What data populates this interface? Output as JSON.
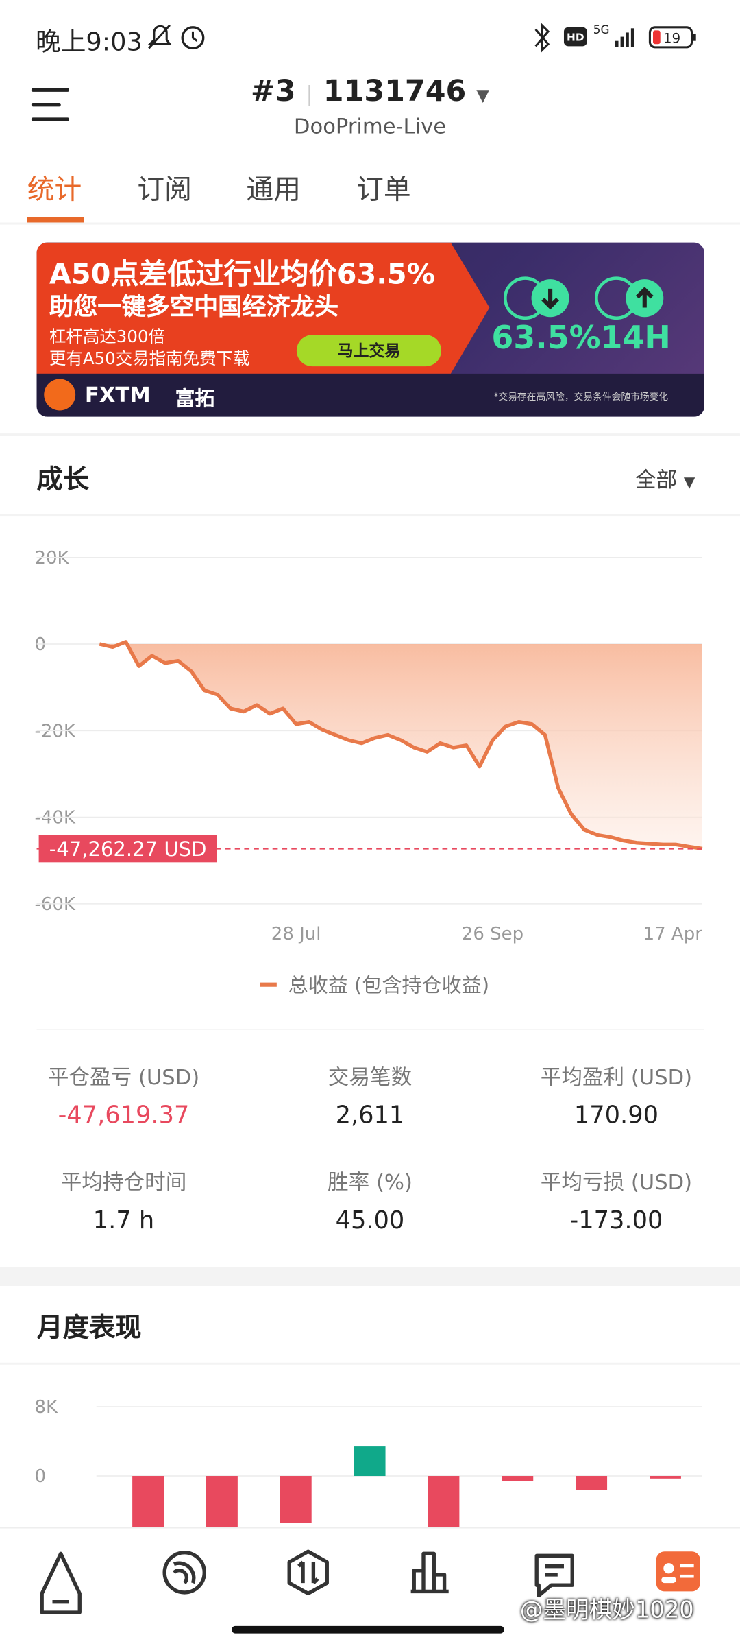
{
  "status_bar": {
    "time": "晚上9:03",
    "hd": "HD",
    "network": "5G",
    "battery": "19"
  },
  "header": {
    "account": "#3",
    "number": "1131746",
    "server": "DooPrime-Live"
  },
  "tabs": [
    "统计",
    "订阅",
    "通用",
    "订单"
  ],
  "banner": {
    "headline": "A50点差低过行业均价63.5%",
    "subhead": "助您一键多空中国经济龙头",
    "line1": "杠杆高达300倍",
    "line2": "更有A50交易指南免费下载",
    "button": "马上交易",
    "stat1": "63.5%",
    "stat2": "14H",
    "brand": "FXTM",
    "brand_cn": "富拓",
    "disclaimer": "*交易存在高风险，交易条件会随市场变化"
  },
  "growth": {
    "title": "成长",
    "filter": "全部"
  },
  "stats": [
    {
      "label": "平仓盈亏 (USD)",
      "value": "-47,619.37"
    },
    {
      "label": "交易笔数",
      "value": "2,611"
    },
    {
      "label": "平均盈利 (USD)",
      "value": "170.90"
    },
    {
      "label": "平均持仓时间",
      "value": "1.7 h"
    },
    {
      "label": "胜率 (%)",
      "value": "45.00"
    },
    {
      "label": "平均亏损 (USD)",
      "value": "-173.00"
    }
  ],
  "monthly": {
    "title": "月度表现"
  },
  "watermark": "@墨明棋妙1020",
  "chart_data": [
    {
      "type": "area",
      "categories": [
        null,
        null,
        null,
        null,
        null,
        null,
        null,
        null,
        null,
        null,
        null,
        null,
        null,
        null,
        null,
        "28 Jul",
        null,
        null,
        null,
        null,
        null,
        null,
        null,
        null,
        null,
        null,
        null,
        null,
        null,
        null,
        "26 Sep",
        null,
        null,
        null,
        null,
        null,
        null,
        null,
        null,
        null,
        null,
        null,
        null,
        null,
        null,
        null,
        "17 Apr"
      ],
      "series": [
        {
          "name": "总收益 (包含持仓收益)",
          "color": "#e8794a",
          "values": [
            0,
            -700,
            500,
            -5100,
            -2700,
            -4400,
            -3900,
            -6300,
            -10700,
            -11700,
            -14900,
            -15600,
            -14100,
            -16100,
            -14900,
            -18500,
            -18000,
            -19800,
            -21000,
            -22200,
            -22900,
            -21700,
            -21000,
            -22200,
            -23900,
            -24900,
            -22900,
            -23900,
            -23400,
            -28300,
            -22200,
            -19000,
            -18000,
            -18500,
            -21000,
            -33200,
            -39300,
            -42900,
            -44100,
            -44600,
            -45400,
            -45900,
            -46100,
            -46300,
            -46300,
            -46800,
            -47262.27
          ]
        }
      ],
      "ylim": [
        -60000,
        20000
      ],
      "yticks": [
        {
          "value": 20000,
          "label": "20K"
        },
        0,
        {
          "value": -20000,
          "label": "-20K"
        },
        {
          "value": -40000,
          "label": "-40K"
        },
        {
          "value": -60000,
          "label": "-60K"
        }
      ],
      "grid": true,
      "annotation": {
        "value": -47262.27,
        "label": "-47,262.27 USD",
        "color": "#e8495e"
      }
    },
    {
      "type": "bar",
      "categories": [
        null,
        null,
        null,
        null,
        null,
        null,
        null,
        null
      ],
      "values": [
        -6000,
        -6000,
        -5400,
        3400,
        -6000,
        -600,
        -1600,
        -300
      ],
      "positive_color": "#10a98a",
      "negative_color": "#e8495e",
      "ylim": [
        -8000,
        8000
      ],
      "yticks": [
        {
          "value": 8000,
          "label": "8K"
        },
        0
      ],
      "grid": true
    }
  ]
}
